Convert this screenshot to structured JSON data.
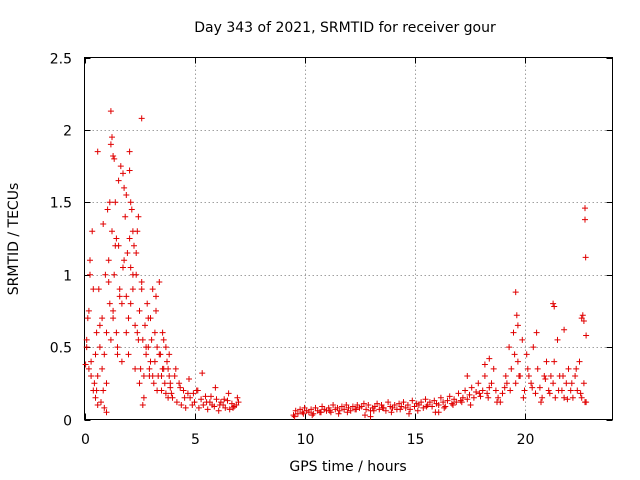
{
  "chart_data": {
    "type": "scatter",
    "title": "Day 343 of 2021, SRMTID for receiver gour",
    "xlabel": "GPS time / hours",
    "ylabel": "SRMTID / TECUs",
    "xlim": [
      0,
      24
    ],
    "ylim": [
      0,
      2.5
    ],
    "xticks": [
      0,
      5,
      10,
      15,
      20
    ],
    "xtick_labels": [
      "0",
      "5",
      "10",
      "15",
      "20"
    ],
    "yticks": [
      0,
      0.5,
      1,
      1.5,
      2,
      2.5
    ],
    "ytick_labels": [
      "0",
      "0.5",
      "1",
      "1.5",
      "2",
      "2.5"
    ],
    "grid": true,
    "marker": "+",
    "colors": {
      "series": "#e00000",
      "grid": "#a0a0a0",
      "axes": "#000000"
    },
    "series": [
      {
        "name": "SRMTID",
        "x": [
          0.05,
          0.1,
          0.15,
          0.2,
          0.25,
          0.3,
          0.35,
          0.4,
          0.45,
          0.5,
          0.55,
          0.6,
          0.65,
          0.7,
          0.75,
          0.8,
          0.85,
          0.9,
          0.95,
          1.0,
          1.05,
          1.1,
          1.15,
          1.2,
          1.25,
          1.3,
          1.35,
          1.4,
          1.45,
          1.5,
          1.55,
          1.6,
          1.65,
          1.7,
          1.75,
          1.8,
          1.85,
          1.9,
          1.95,
          2.0,
          2.05,
          2.1,
          2.15,
          2.2,
          2.25,
          2.3,
          2.35,
          2.4,
          2.45,
          2.5,
          2.55,
          2.6,
          2.65,
          2.7,
          2.75,
          2.8,
          2.85,
          2.9,
          2.95,
          3.0,
          3.05,
          3.1,
          3.15,
          3.2,
          3.25,
          3.3,
          3.35,
          3.4,
          3.45,
          3.5,
          3.55,
          3.6,
          3.65,
          3.7,
          3.75,
          3.8,
          3.85,
          3.9,
          3.95,
          4.0,
          0.1,
          0.2,
          0.3,
          0.4,
          0.5,
          0.6,
          0.7,
          0.8,
          0.9,
          1.0,
          1.1,
          1.2,
          1.3,
          1.4,
          1.5,
          1.6,
          1.7,
          1.8,
          1.9,
          2.0,
          2.1,
          2.2,
          2.3,
          2.4,
          2.5,
          2.6,
          2.7,
          2.8,
          2.9,
          3.0,
          3.1,
          3.2,
          3.3,
          3.4,
          3.5,
          3.6,
          3.7,
          3.8,
          3.9,
          0.25,
          0.55,
          0.85,
          1.15,
          1.45,
          1.75,
          2.05,
          2.35,
          2.65,
          2.95,
          3.25,
          3.55,
          3.85,
          1.2,
          1.25,
          1.3,
          1.35,
          2.05,
          2.6,
          0.6,
          1.9,
          2.1,
          2.45,
          1.0,
          1.55,
          2.2,
          4.1,
          4.2,
          4.3,
          4.4,
          4.5,
          4.6,
          4.7,
          4.8,
          4.9,
          5.0,
          5.1,
          5.2,
          5.3,
          5.4,
          5.5,
          5.6,
          5.7,
          5.8,
          5.9,
          6.0,
          6.1,
          6.2,
          6.3,
          6.4,
          6.5,
          6.6,
          6.7,
          6.8,
          6.9,
          7.0,
          4.15,
          4.35,
          4.55,
          4.75,
          4.95,
          5.15,
          5.35,
          5.55,
          5.75,
          5.95,
          6.15,
          6.35,
          6.55,
          6.75,
          6.95,
          9.5,
          9.6,
          9.7,
          9.8,
          9.9,
          10.0,
          10.1,
          10.2,
          10.3,
          10.4,
          10.5,
          10.6,
          10.7,
          10.8,
          10.9,
          11.0,
          11.1,
          11.2,
          11.3,
          11.4,
          11.5,
          11.6,
          11.7,
          11.8,
          11.9,
          12.0,
          12.1,
          12.2,
          12.3,
          12.4,
          12.5,
          12.6,
          12.7,
          12.8,
          12.9,
          13.0,
          13.1,
          13.2,
          13.3,
          13.4,
          13.5,
          13.6,
          13.7,
          13.8,
          13.9,
          14.0,
          14.1,
          14.2,
          14.3,
          14.4,
          14.5,
          14.6,
          14.7,
          14.8,
          14.9,
          15.0,
          15.1,
          15.2,
          15.3,
          15.4,
          15.5,
          15.6,
          15.7,
          15.8,
          15.9,
          16.0,
          16.1,
          16.2,
          16.3,
          16.4,
          16.5,
          16.6,
          16.7,
          16.8,
          16.9,
          17.0,
          17.1,
          17.2,
          17.3,
          17.4,
          17.5,
          17.6,
          17.7,
          17.8,
          17.9,
          18.0,
          18.1,
          18.2,
          18.3,
          18.4,
          18.5,
          18.6,
          18.7,
          18.8,
          18.9,
          19.0,
          19.1,
          19.2,
          9.55,
          9.95,
          10.35,
          10.75,
          11.15,
          11.55,
          11.95,
          12.35,
          12.75,
          13.15,
          13.55,
          13.95,
          14.35,
          14.75,
          15.15,
          15.55,
          15.95,
          16.35,
          16.75,
          17.15,
          17.55,
          17.95,
          18.35,
          18.75,
          19.15,
          13.0,
          16.1,
          17.4,
          18.2,
          18.4,
          19.3,
          19.4,
          19.5,
          19.6,
          19.7,
          19.8,
          19.9,
          20.0,
          20.1,
          20.2,
          20.3,
          20.4,
          20.5,
          20.6,
          20.7,
          20.8,
          20.9,
          21.0,
          21.1,
          21.2,
          21.3,
          21.4,
          21.5,
          21.6,
          21.7,
          21.8,
          21.9,
          22.0,
          22.1,
          22.2,
          22.3,
          22.4,
          22.5,
          22.6,
          22.7,
          22.8,
          19.35,
          19.55,
          19.75,
          19.95,
          20.15,
          20.35,
          20.55,
          20.75,
          20.95,
          21.15,
          21.35,
          21.55,
          21.75,
          21.95,
          22.15,
          22.35,
          22.55,
          22.75,
          19.6,
          19.65,
          19.7,
          21.3,
          21.35,
          21.8,
          22.6,
          22.65,
          22.7,
          22.75,
          22.75,
          22.78,
          22.8
        ],
        "y": [
          0.38,
          0.55,
          0.7,
          0.35,
          1.1,
          0.4,
          1.3,
          0.9,
          0.25,
          0.15,
          0.6,
          0.3,
          0.9,
          0.5,
          0.12,
          0.7,
          0.2,
          0.45,
          1.0,
          0.6,
          1.45,
          1.1,
          0.8,
          1.9,
          1.3,
          0.75,
          1.0,
          1.5,
          0.6,
          0.45,
          1.2,
          0.9,
          1.75,
          0.8,
          1.05,
          1.6,
          1.4,
          0.85,
          1.15,
          0.7,
          1.25,
          1.05,
          1.45,
          0.9,
          1.2,
          0.65,
          1.0,
          1.3,
          0.55,
          0.75,
          0.35,
          0.95,
          0.55,
          0.3,
          0.65,
          0.45,
          0.8,
          0.5,
          0.35,
          0.7,
          0.55,
          0.9,
          0.25,
          0.4,
          0.75,
          0.5,
          0.3,
          0.95,
          0.45,
          0.2,
          0.6,
          0.35,
          0.25,
          0.5,
          0.4,
          0.15,
          0.3,
          0.22,
          0.18,
          0.15,
          0.5,
          0.75,
          0.3,
          0.2,
          0.45,
          0.1,
          0.65,
          0.35,
          0.08,
          0.25,
          0.95,
          0.55,
          0.7,
          1.2,
          0.5,
          0.85,
          0.4,
          1.1,
          0.6,
          0.45,
          0.8,
          1.0,
          0.35,
          0.6,
          0.25,
          0.9,
          0.15,
          0.5,
          0.7,
          0.4,
          0.3,
          0.6,
          0.2,
          0.45,
          0.3,
          0.55,
          0.18,
          0.35,
          0.25,
          1.0,
          0.2,
          1.35,
          1.5,
          1.25,
          1.7,
          1.85,
          1.15,
          0.1,
          0.3,
          0.85,
          0.35,
          0.45,
          2.13,
          1.95,
          1.82,
          1.8,
          1.72,
          2.08,
          1.85,
          1.55,
          1.5,
          1.4,
          0.05,
          1.65,
          1.3,
          0.3,
          0.12,
          0.25,
          0.1,
          0.2,
          0.08,
          0.18,
          0.15,
          0.1,
          0.12,
          0.2,
          0.08,
          0.14,
          0.1,
          0.16,
          0.07,
          0.12,
          0.1,
          0.09,
          0.14,
          0.06,
          0.12,
          0.1,
          0.08,
          0.13,
          0.07,
          0.11,
          0.09,
          0.1,
          0.12,
          0.35,
          0.22,
          0.15,
          0.28,
          0.18,
          0.2,
          0.32,
          0.12,
          0.16,
          0.22,
          0.1,
          0.14,
          0.18,
          0.08,
          0.15,
          0.03,
          0.06,
          0.04,
          0.07,
          0.05,
          0.08,
          0.06,
          0.05,
          0.07,
          0.04,
          0.08,
          0.06,
          0.05,
          0.09,
          0.07,
          0.06,
          0.08,
          0.05,
          0.1,
          0.07,
          0.08,
          0.06,
          0.09,
          0.07,
          0.1,
          0.08,
          0.06,
          0.09,
          0.07,
          0.1,
          0.08,
          0.09,
          0.11,
          0.07,
          0.1,
          0.06,
          0.08,
          0.09,
          0.11,
          0.07,
          0.1,
          0.08,
          0.06,
          0.12,
          0.09,
          0.08,
          0.1,
          0.07,
          0.11,
          0.09,
          0.12,
          0.08,
          0.1,
          0.07,
          0.13,
          0.09,
          0.11,
          0.1,
          0.12,
          0.08,
          0.14,
          0.1,
          0.12,
          0.09,
          0.13,
          0.11,
          0.1,
          0.15,
          0.12,
          0.09,
          0.13,
          0.16,
          0.11,
          0.14,
          0.12,
          0.18,
          0.13,
          0.15,
          0.2,
          0.14,
          0.17,
          0.22,
          0.15,
          0.19,
          0.25,
          0.16,
          0.2,
          0.3,
          0.18,
          0.22,
          0.25,
          0.35,
          0.2,
          0.15,
          0.12,
          0.18,
          0.22,
          0.25,
          0.02,
          0.04,
          0.03,
          0.05,
          0.06,
          0.04,
          0.05,
          0.07,
          0.03,
          0.06,
          0.08,
          0.05,
          0.07,
          0.04,
          0.06,
          0.09,
          0.05,
          0.08,
          0.1,
          0.12,
          0.1,
          0.18,
          0.15,
          0.12,
          0.3,
          0.02,
          0.05,
          0.3,
          0.38,
          0.42,
          0.5,
          0.35,
          0.6,
          0.25,
          0.4,
          0.3,
          0.55,
          0.2,
          0.45,
          0.3,
          0.25,
          0.5,
          0.18,
          0.35,
          0.22,
          0.15,
          0.3,
          0.4,
          0.2,
          0.3,
          0.25,
          0.15,
          0.55,
          0.3,
          0.2,
          0.15,
          0.25,
          0.35,
          0.2,
          0.15,
          0.3,
          0.2,
          0.4,
          0.15,
          0.25,
          0.12,
          0.2,
          0.45,
          0.3,
          0.15,
          0.35,
          0.22,
          0.6,
          0.12,
          0.28,
          0.18,
          0.4,
          0.2,
          0.3,
          0.14,
          0.25,
          0.35,
          0.18,
          0.12,
          0.88,
          0.72,
          0.65,
          0.8,
          0.78,
          0.62,
          0.7,
          0.72,
          0.68,
          1.46,
          1.38,
          1.12,
          0.58
        ]
      }
    ]
  }
}
